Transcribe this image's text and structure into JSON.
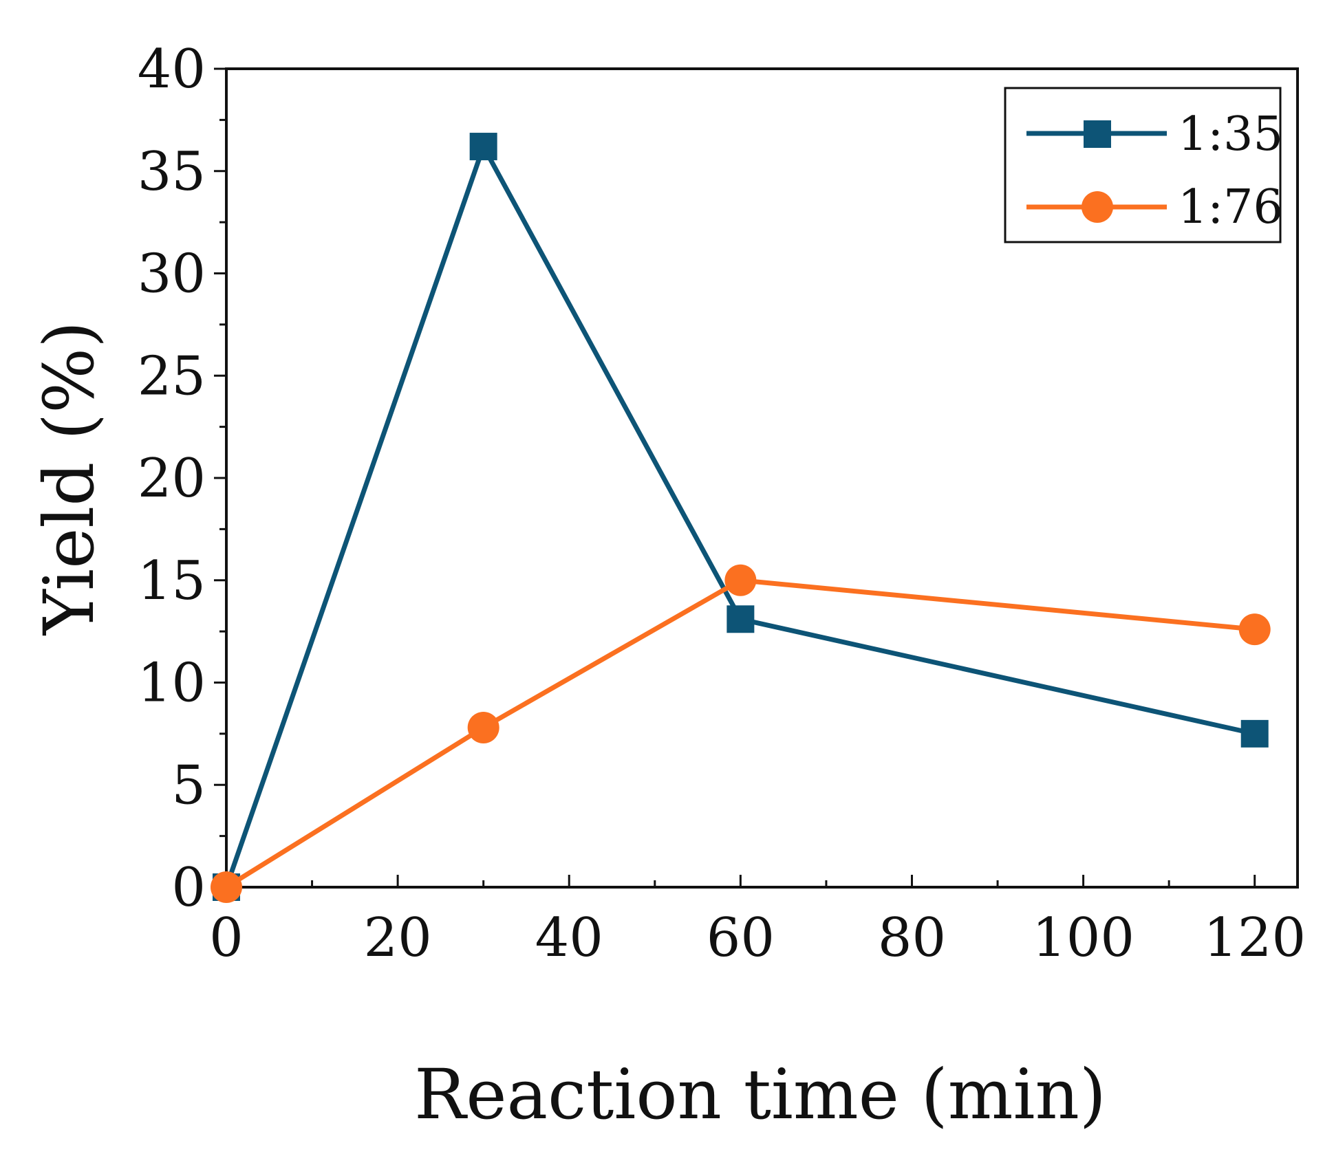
{
  "chart_data": {
    "type": "line",
    "title": "",
    "xlabel": "Reaction time (min)",
    "ylabel": "Yield (%)",
    "xlim": [
      0,
      125
    ],
    "ylim": [
      0,
      40
    ],
    "xticks": [
      0,
      20,
      40,
      60,
      80,
      100,
      120
    ],
    "xtick_labels": [
      "0",
      "20",
      "40",
      "60",
      "80",
      "100",
      "120"
    ],
    "yticks": [
      0,
      5,
      10,
      15,
      20,
      25,
      30,
      35,
      40
    ],
    "ytick_labels": [
      "0",
      "5",
      "10",
      "15",
      "20",
      "25",
      "30",
      "35",
      "40"
    ],
    "grid": false,
    "legend_position": "top-right",
    "series": [
      {
        "name": "1:35",
        "marker": "square",
        "color": "#0d5476",
        "x": [
          0,
          30,
          60,
          120
        ],
        "y": [
          0,
          36.2,
          13.1,
          7.5
        ]
      },
      {
        "name": "1:76",
        "marker": "circle",
        "color": "#fb7020",
        "x": [
          0,
          30,
          60,
          120
        ],
        "y": [
          0,
          7.8,
          15.0,
          12.6
        ]
      }
    ]
  }
}
